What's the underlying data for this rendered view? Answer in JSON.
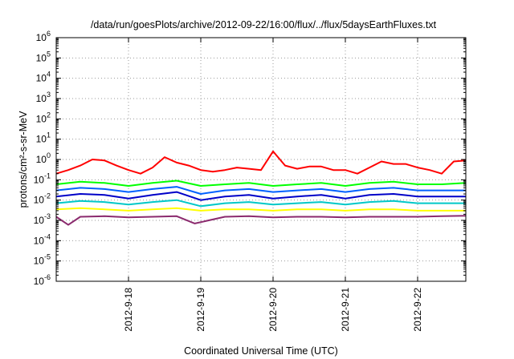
{
  "chart_data": {
    "type": "line",
    "title": "/data/run/goesPlots/archive/2012-09-22/16:00/flux/../flux/5daysEarthFluxes.txt",
    "xlabel": "Coordinated Universal Time (UTC)",
    "ylabel": "protons/cm²-s-sr-MeV",
    "y_scale": "log",
    "ylim": [
      1e-06,
      1000000.0
    ],
    "y_tick_exponents": [
      "-6",
      "-5",
      "-4",
      "-3",
      "-2",
      "-1",
      "0",
      "1",
      "2",
      "3",
      "4",
      "5",
      "6"
    ],
    "xlim": [
      "2012-09-17 00:00",
      "2012-09-22 16:00"
    ],
    "x_ticks": [
      "2012-9-18",
      "2012-9-19",
      "2012-9-20",
      "2012-9-21",
      "2012-9-22"
    ],
    "grid": true,
    "legend": "none",
    "series": [
      {
        "color": "#ff0000",
        "x": [
          "2012-09-17 00:00",
          "2012-09-17 04:00",
          "2012-09-17 08:00",
          "2012-09-17 12:00",
          "2012-09-17 16:00",
          "2012-09-17 20:00",
          "2012-09-18 00:00",
          "2012-09-18 04:00",
          "2012-09-18 08:00",
          "2012-09-18 12:00",
          "2012-09-18 16:00",
          "2012-09-18 20:00",
          "2012-09-19 00:00",
          "2012-09-19 04:00",
          "2012-09-19 08:00",
          "2012-09-19 12:00",
          "2012-09-19 16:00",
          "2012-09-19 20:00",
          "2012-09-20 00:00",
          "2012-09-20 04:00",
          "2012-09-20 08:00",
          "2012-09-20 12:00",
          "2012-09-20 16:00",
          "2012-09-20 20:00",
          "2012-09-21 00:00",
          "2012-09-21 04:00",
          "2012-09-21 08:00",
          "2012-09-21 12:00",
          "2012-09-21 16:00",
          "2012-09-21 20:00",
          "2012-09-22 00:00",
          "2012-09-22 04:00",
          "2012-09-22 08:00",
          "2012-09-22 12:00",
          "2012-09-22 16:00"
        ],
        "values": [
          0.2,
          0.3,
          0.5,
          1.0,
          0.9,
          0.5,
          0.3,
          0.2,
          0.4,
          1.3,
          0.7,
          0.5,
          0.3,
          0.25,
          0.3,
          0.4,
          0.35,
          0.3,
          2.5,
          0.5,
          0.35,
          0.45,
          0.45,
          0.3,
          0.3,
          0.2,
          0.4,
          0.8,
          0.6,
          0.6,
          0.4,
          0.3,
          0.2,
          0.8,
          0.9
        ]
      },
      {
        "color": "#00ff00",
        "x": [
          "2012-09-17 00:00",
          "2012-09-17 08:00",
          "2012-09-17 16:00",
          "2012-09-18 00:00",
          "2012-09-18 08:00",
          "2012-09-18 16:00",
          "2012-09-19 00:00",
          "2012-09-19 08:00",
          "2012-09-19 16:00",
          "2012-09-20 00:00",
          "2012-09-20 08:00",
          "2012-09-20 16:00",
          "2012-09-21 00:00",
          "2012-09-21 08:00",
          "2012-09-21 16:00",
          "2012-09-22 00:00",
          "2012-09-22 08:00",
          "2012-09-22 16:00"
        ],
        "values": [
          0.06,
          0.08,
          0.07,
          0.05,
          0.07,
          0.09,
          0.05,
          0.06,
          0.07,
          0.05,
          0.06,
          0.07,
          0.05,
          0.07,
          0.08,
          0.06,
          0.06,
          0.07
        ]
      },
      {
        "color": "#0060ff",
        "x": [
          "2012-09-17 00:00",
          "2012-09-17 08:00",
          "2012-09-17 16:00",
          "2012-09-18 00:00",
          "2012-09-18 08:00",
          "2012-09-18 16:00",
          "2012-09-19 00:00",
          "2012-09-19 08:00",
          "2012-09-19 16:00",
          "2012-09-20 00:00",
          "2012-09-20 08:00",
          "2012-09-20 16:00",
          "2012-09-21 00:00",
          "2012-09-21 08:00",
          "2012-09-21 16:00",
          "2012-09-22 00:00",
          "2012-09-22 08:00",
          "2012-09-22 16:00"
        ],
        "values": [
          0.03,
          0.04,
          0.035,
          0.025,
          0.035,
          0.045,
          0.02,
          0.03,
          0.035,
          0.025,
          0.03,
          0.035,
          0.025,
          0.035,
          0.04,
          0.03,
          0.03,
          0.03
        ]
      },
      {
        "color": "#0000c8",
        "x": [
          "2012-09-17 00:00",
          "2012-09-17 08:00",
          "2012-09-17 16:00",
          "2012-09-18 00:00",
          "2012-09-18 08:00",
          "2012-09-18 16:00",
          "2012-09-19 00:00",
          "2012-09-19 08:00",
          "2012-09-19 16:00",
          "2012-09-20 00:00",
          "2012-09-20 08:00",
          "2012-09-20 16:00",
          "2012-09-21 00:00",
          "2012-09-21 08:00",
          "2012-09-21 16:00",
          "2012-09-22 00:00",
          "2012-09-22 08:00",
          "2012-09-22 16:00"
        ],
        "values": [
          0.015,
          0.02,
          0.018,
          0.012,
          0.018,
          0.025,
          0.01,
          0.015,
          0.018,
          0.012,
          0.015,
          0.018,
          0.012,
          0.018,
          0.02,
          0.015,
          0.015,
          0.015
        ]
      },
      {
        "color": "#00c8c8",
        "x": [
          "2012-09-17 00:00",
          "2012-09-17 08:00",
          "2012-09-17 16:00",
          "2012-09-18 00:00",
          "2012-09-18 08:00",
          "2012-09-18 16:00",
          "2012-09-19 00:00",
          "2012-09-19 08:00",
          "2012-09-19 16:00",
          "2012-09-20 00:00",
          "2012-09-20 08:00",
          "2012-09-20 16:00",
          "2012-09-21 00:00",
          "2012-09-21 08:00",
          "2012-09-21 16:00",
          "2012-09-22 00:00",
          "2012-09-22 08:00",
          "2012-09-22 16:00"
        ],
        "values": [
          0.007,
          0.009,
          0.008,
          0.006,
          0.008,
          0.01,
          0.005,
          0.007,
          0.008,
          0.006,
          0.007,
          0.008,
          0.006,
          0.008,
          0.009,
          0.007,
          0.007,
          0.007
        ]
      },
      {
        "color": "#ffff00",
        "x": [
          "2012-09-17 00:00",
          "2012-09-17 08:00",
          "2012-09-17 16:00",
          "2012-09-18 00:00",
          "2012-09-18 08:00",
          "2012-09-18 16:00",
          "2012-09-19 00:00",
          "2012-09-19 08:00",
          "2012-09-19 16:00",
          "2012-09-20 00:00",
          "2012-09-20 08:00",
          "2012-09-20 16:00",
          "2012-09-21 00:00",
          "2012-09-21 08:00",
          "2012-09-21 16:00",
          "2012-09-22 00:00",
          "2012-09-22 08:00",
          "2012-09-22 16:00"
        ],
        "values": [
          0.0035,
          0.004,
          0.0035,
          0.003,
          0.0035,
          0.004,
          0.003,
          0.0035,
          0.0035,
          0.003,
          0.0035,
          0.0035,
          0.003,
          0.0035,
          0.0035,
          0.003,
          0.003,
          0.003
        ]
      },
      {
        "color": "#8b2a6e",
        "x": [
          "2012-09-17 00:00",
          "2012-09-17 04:00",
          "2012-09-17 08:00",
          "2012-09-17 16:00",
          "2012-09-18 00:00",
          "2012-09-18 08:00",
          "2012-09-18 16:00",
          "2012-09-18 22:00",
          "2012-09-19 08:00",
          "2012-09-19 16:00",
          "2012-09-20 00:00",
          "2012-09-20 08:00",
          "2012-09-20 16:00",
          "2012-09-21 00:00",
          "2012-09-21 08:00",
          "2012-09-21 16:00",
          "2012-09-22 00:00",
          "2012-09-22 08:00",
          "2012-09-22 16:00"
        ],
        "values": [
          0.0015,
          0.0006,
          0.0015,
          0.0016,
          0.0014,
          0.0015,
          0.0016,
          0.0007,
          0.0015,
          0.0016,
          0.0014,
          0.0015,
          0.0015,
          0.0014,
          0.0015,
          0.0015,
          0.0015,
          0.0016,
          0.0017
        ]
      }
    ]
  }
}
